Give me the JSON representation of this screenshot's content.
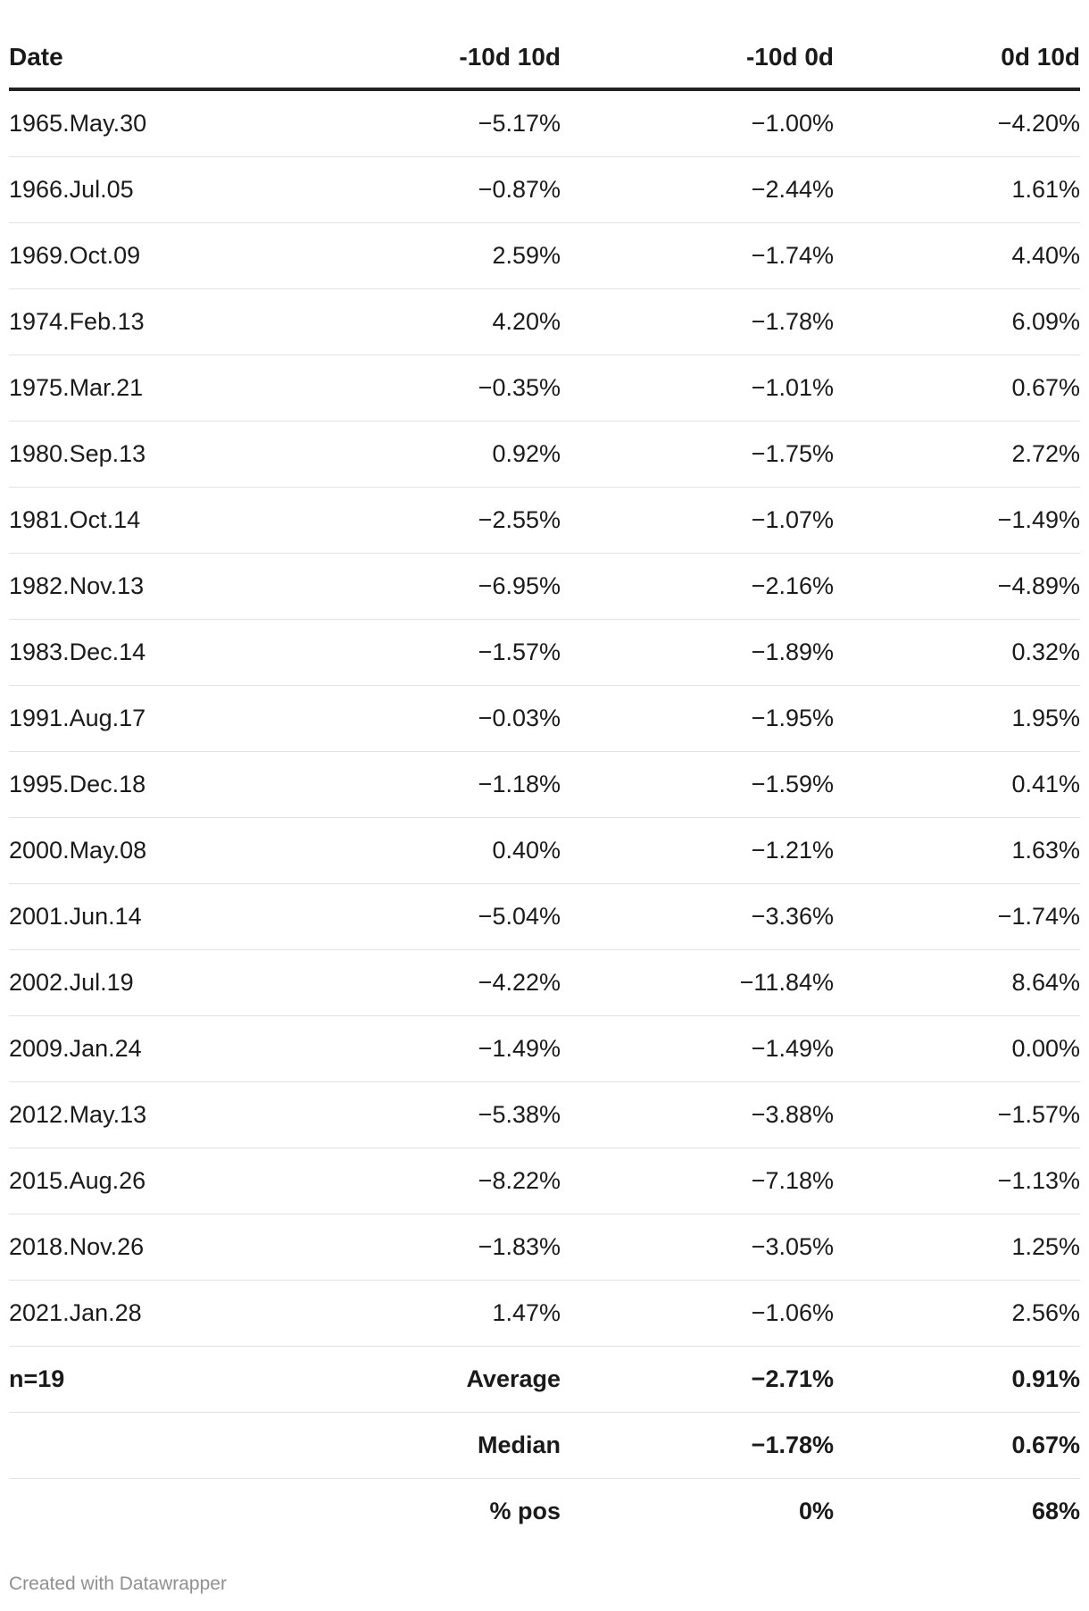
{
  "chart_data": {
    "type": "table",
    "columns": [
      "Date",
      "-10d 10d",
      "-10d 0d",
      "0d 10d"
    ],
    "rows": [
      [
        "1965.May.30",
        "−5.17%",
        "−1.00%",
        "−4.20%"
      ],
      [
        "1966.Jul.05",
        "−0.87%",
        "−2.44%",
        "1.61%"
      ],
      [
        "1969.Oct.09",
        "2.59%",
        "−1.74%",
        "4.40%"
      ],
      [
        "1974.Feb.13",
        "4.20%",
        "−1.78%",
        "6.09%"
      ],
      [
        "1975.Mar.21",
        "−0.35%",
        "−1.01%",
        "0.67%"
      ],
      [
        "1980.Sep.13",
        "0.92%",
        "−1.75%",
        "2.72%"
      ],
      [
        "1981.Oct.14",
        "−2.55%",
        "−1.07%",
        "−1.49%"
      ],
      [
        "1982.Nov.13",
        "−6.95%",
        "−2.16%",
        "−4.89%"
      ],
      [
        "1983.Dec.14",
        "−1.57%",
        "−1.89%",
        "0.32%"
      ],
      [
        "1991.Aug.17",
        "−0.03%",
        "−1.95%",
        "1.95%"
      ],
      [
        "1995.Dec.18",
        "−1.18%",
        "−1.59%",
        "0.41%"
      ],
      [
        "2000.May.08",
        "0.40%",
        "−1.21%",
        "1.63%"
      ],
      [
        "2001.Jun.14",
        "−5.04%",
        "−3.36%",
        "−1.74%"
      ],
      [
        "2002.Jul.19",
        "−4.22%",
        "−11.84%",
        "8.64%"
      ],
      [
        "2009.Jan.24",
        "−1.49%",
        "−1.49%",
        "0.00%"
      ],
      [
        "2012.May.13",
        "−5.38%",
        "−3.88%",
        "−1.57%"
      ],
      [
        "2015.Aug.26",
        "−8.22%",
        "−7.18%",
        "−1.13%"
      ],
      [
        "2018.Nov.26",
        "−1.83%",
        "−3.05%",
        "1.25%"
      ],
      [
        "2021.Jan.28",
        "1.47%",
        "−1.06%",
        "2.56%"
      ]
    ],
    "summary_rows": [
      [
        "n=19",
        "Average",
        "−2.71%",
        "0.91%"
      ],
      [
        "",
        "Median",
        "−1.78%",
        "0.67%"
      ],
      [
        "",
        "% pos",
        "0%",
        "68%"
      ]
    ]
  },
  "footer": "Created with Datawrapper"
}
